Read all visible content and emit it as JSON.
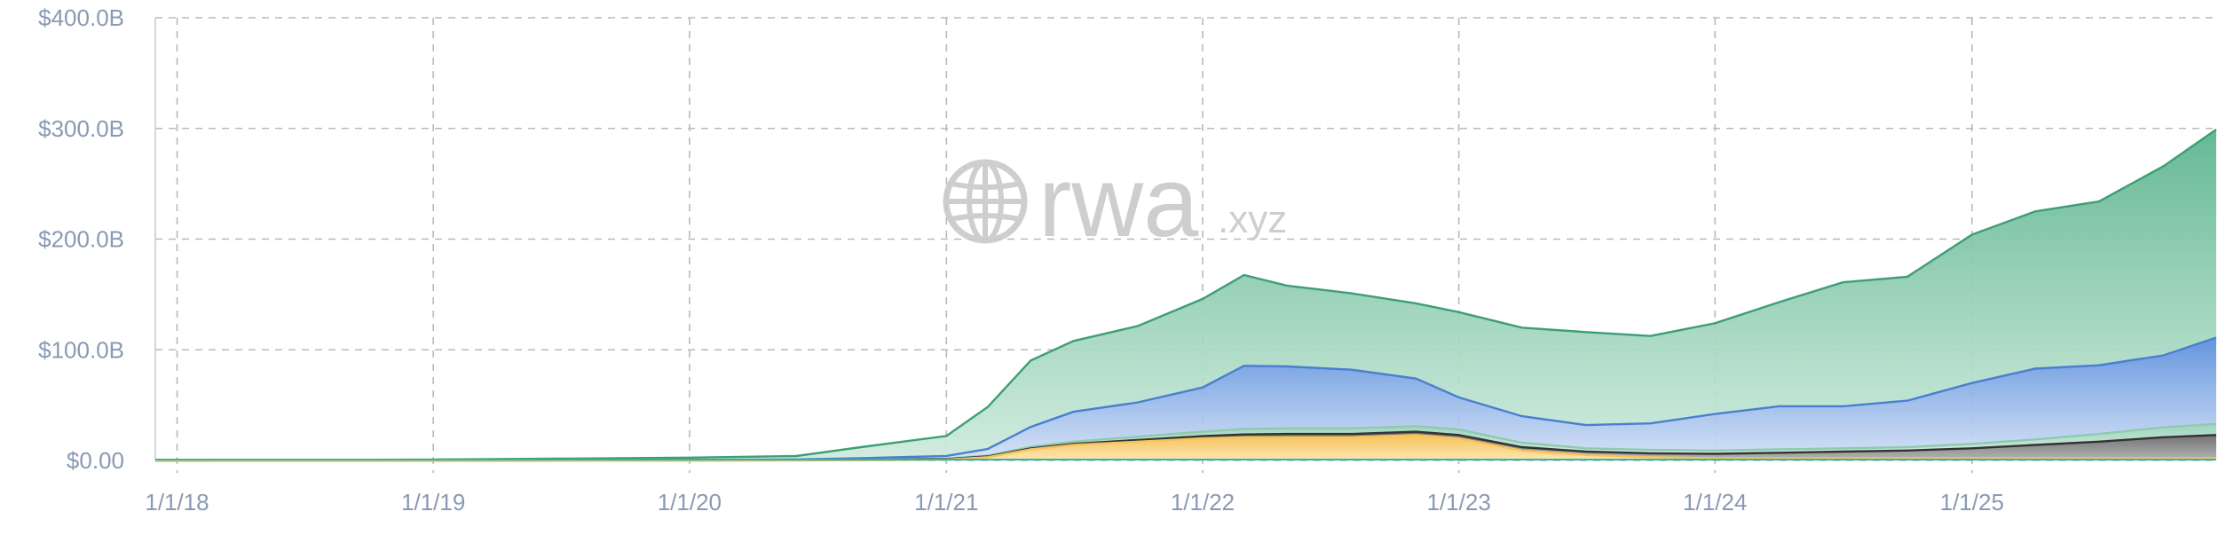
{
  "chart_data": {
    "type": "area",
    "stacked": true,
    "title": "",
    "xlabel": "",
    "ylabel": "",
    "xlim": [
      "2017-12-01",
      "2025-12-15"
    ],
    "ylim": [
      0,
      400
    ],
    "y_unit": "B USD",
    "y_ticks": [
      {
        "value": 0,
        "label": "$0.00"
      },
      {
        "value": 100,
        "label": "$100.0B"
      },
      {
        "value": 200,
        "label": "$200.0B"
      },
      {
        "value": 300,
        "label": "$300.0B"
      },
      {
        "value": 400,
        "label": "$400.0B"
      }
    ],
    "x_ticks": [
      {
        "date": "2018-01-01",
        "label": "1/1/18"
      },
      {
        "date": "2019-01-01",
        "label": "1/1/19"
      },
      {
        "date": "2020-01-01",
        "label": "1/1/20"
      },
      {
        "date": "2021-01-01",
        "label": "1/1/21"
      },
      {
        "date": "2022-01-01",
        "label": "1/1/22"
      },
      {
        "date": "2023-01-01",
        "label": "1/1/23"
      },
      {
        "date": "2024-01-01",
        "label": "1/1/24"
      },
      {
        "date": "2025-01-01",
        "label": "1/1/25"
      }
    ],
    "grid": true,
    "legend": "none",
    "x": [
      "2017-12-01",
      "2018-06-01",
      "2019-01-01",
      "2019-06-01",
      "2020-01-01",
      "2020-06-01",
      "2020-09-01",
      "2021-01-01",
      "2021-03-01",
      "2021-05-01",
      "2021-07-01",
      "2021-10-01",
      "2022-01-01",
      "2022-03-01",
      "2022-05-01",
      "2022-08-01",
      "2022-11-01",
      "2023-01-01",
      "2023-04-01",
      "2023-07-01",
      "2023-10-01",
      "2024-01-01",
      "2024-04-01",
      "2024-07-01",
      "2024-10-01",
      "2025-01-01",
      "2025-04-01",
      "2025-07-01",
      "2025-10-01",
      "2025-12-15"
    ],
    "series": [
      {
        "color": "#f5c35a",
        "values": [
          0,
          0,
          0,
          0,
          0,
          0,
          0.2,
          0.8,
          3,
          10,
          14,
          17,
          20,
          21,
          21,
          21,
          23,
          20,
          9,
          5,
          3,
          2,
          2,
          2,
          2,
          2,
          2,
          2,
          2,
          2
        ]
      },
      {
        "color": "#333333",
        "values": [
          0,
          0,
          0,
          0,
          0.1,
          0.2,
          0.3,
          0.5,
          0.6,
          0.8,
          1,
          1.5,
          2,
          2.5,
          3,
          3,
          3,
          3,
          3,
          3,
          3.5,
          4,
          5,
          6,
          7,
          9,
          12,
          15,
          19,
          21
        ]
      },
      {
        "color": "#8fc9b0",
        "values": [
          0,
          0,
          0,
          0,
          0,
          0,
          0,
          0.3,
          0.8,
          1.5,
          2,
          3,
          4,
          5,
          5,
          5,
          5,
          5,
          4,
          3,
          3,
          3,
          3,
          3,
          3,
          4,
          5,
          7,
          9,
          10
        ]
      },
      {
        "color": "#4a7fd0",
        "values": [
          0,
          0,
          0.1,
          0.2,
          0.5,
          0.8,
          1.5,
          2.5,
          6,
          18,
          27,
          31,
          40,
          57,
          56,
          53,
          43,
          29,
          24,
          21,
          24,
          33,
          39,
          38,
          42,
          55,
          64,
          62,
          65,
          78
        ]
      },
      {
        "color": "#3e9e76",
        "values": [
          0,
          0.3,
          0.8,
          1.3,
          2,
          3,
          10,
          18,
          38,
          60,
          64,
          69,
          80,
          82,
          73,
          69,
          68,
          77,
          80,
          84,
          79,
          82,
          94,
          112,
          112,
          134,
          142,
          148,
          171,
          188
        ]
      }
    ],
    "watermark": {
      "main": "rwa",
      "suffix": ".xyz"
    }
  }
}
